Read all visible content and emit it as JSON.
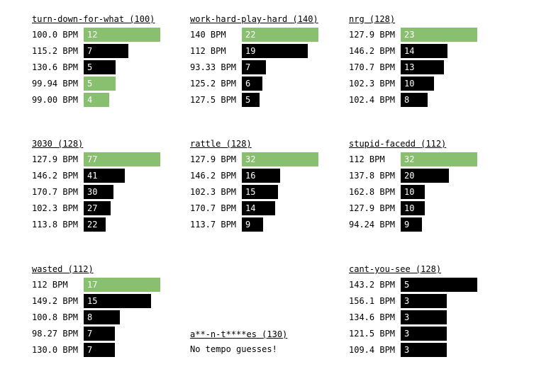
{
  "panels": [
    {
      "name": "turn-down-for-what",
      "bpm": "(100)",
      "rows": [
        {
          "tempo": "100.0 BPM",
          "count": 12,
          "correct": true
        },
        {
          "tempo": "115.2 BPM",
          "count": 7,
          "correct": false
        },
        {
          "tempo": "130.6 BPM",
          "count": 5,
          "correct": false
        },
        {
          "tempo": "99.94 BPM",
          "count": 5,
          "correct": true
        },
        {
          "tempo": "99.00 BPM",
          "count": 4,
          "correct": true
        }
      ]
    },
    {
      "name": "work-hard-play-hard",
      "bpm": "(140)",
      "rows": [
        {
          "tempo": "140 BPM",
          "count": 22,
          "correct": true
        },
        {
          "tempo": "112 BPM",
          "count": 19,
          "correct": false
        },
        {
          "tempo": "93.33 BPM",
          "count": 7,
          "correct": false
        },
        {
          "tempo": "125.2 BPM",
          "count": 6,
          "correct": false
        },
        {
          "tempo": "127.5 BPM",
          "count": 5,
          "correct": false
        }
      ]
    },
    {
      "name": "nrg",
      "bpm": "(128)",
      "rows": [
        {
          "tempo": "127.9 BPM",
          "count": 23,
          "correct": true
        },
        {
          "tempo": "146.2 BPM",
          "count": 14,
          "correct": false
        },
        {
          "tempo": "170.7 BPM",
          "count": 13,
          "correct": false
        },
        {
          "tempo": "102.3 BPM",
          "count": 10,
          "correct": false
        },
        {
          "tempo": "102.4 BPM",
          "count": 8,
          "correct": false
        }
      ]
    },
    {
      "name": "3030",
      "bpm": "(128)",
      "rows": [
        {
          "tempo": "127.9 BPM",
          "count": 77,
          "correct": true
        },
        {
          "tempo": "146.2 BPM",
          "count": 41,
          "correct": false
        },
        {
          "tempo": "170.7 BPM",
          "count": 30,
          "correct": false
        },
        {
          "tempo": "102.3 BPM",
          "count": 27,
          "correct": false
        },
        {
          "tempo": "113.8 BPM",
          "count": 22,
          "correct": false
        }
      ]
    },
    {
      "name": "rattle",
      "bpm": "(128)",
      "rows": [
        {
          "tempo": "127.9 BPM",
          "count": 32,
          "correct": true
        },
        {
          "tempo": "146.2 BPM",
          "count": 16,
          "correct": false
        },
        {
          "tempo": "102.3 BPM",
          "count": 15,
          "correct": false
        },
        {
          "tempo": "170.7 BPM",
          "count": 14,
          "correct": false
        },
        {
          "tempo": "113.7 BPM",
          "count": 9,
          "correct": false
        }
      ]
    },
    {
      "name": "stupid-facedd",
      "bpm": "(112)",
      "rows": [
        {
          "tempo": "112 BPM",
          "count": 32,
          "correct": true
        },
        {
          "tempo": "137.8 BPM",
          "count": 20,
          "correct": false
        },
        {
          "tempo": "162.8 BPM",
          "count": 10,
          "correct": false
        },
        {
          "tempo": "127.9 BPM",
          "count": 10,
          "correct": false
        },
        {
          "tempo": "94.24 BPM",
          "count": 9,
          "correct": false
        }
      ]
    },
    {
      "name": "wasted",
      "bpm": "(112)",
      "rows": [
        {
          "tempo": "112 BPM",
          "count": 17,
          "correct": true
        },
        {
          "tempo": "149.2 BPM",
          "count": 15,
          "correct": false
        },
        {
          "tempo": "100.8 BPM",
          "count": 8,
          "correct": false
        },
        {
          "tempo": "98.27 BPM",
          "count": 7,
          "correct": false
        },
        {
          "tempo": "130.0 BPM",
          "count": 7,
          "correct": false
        }
      ]
    },
    {
      "name": "a**-n-t****es",
      "bpm": "(130)",
      "rows": [],
      "empty_message": "No tempo guesses!"
    },
    {
      "name": "cant-you-see",
      "bpm": "(128)",
      "rows": [
        {
          "tempo": "143.2 BPM",
          "count": 5,
          "correct": false
        },
        {
          "tempo": "156.1 BPM",
          "count": 3,
          "correct": false
        },
        {
          "tempo": "134.6 BPM",
          "count": 3,
          "correct": false
        },
        {
          "tempo": "121.5 BPM",
          "count": 3,
          "correct": false
        },
        {
          "tempo": "109.4 BPM",
          "count": 3,
          "correct": false
        }
      ]
    }
  ]
}
